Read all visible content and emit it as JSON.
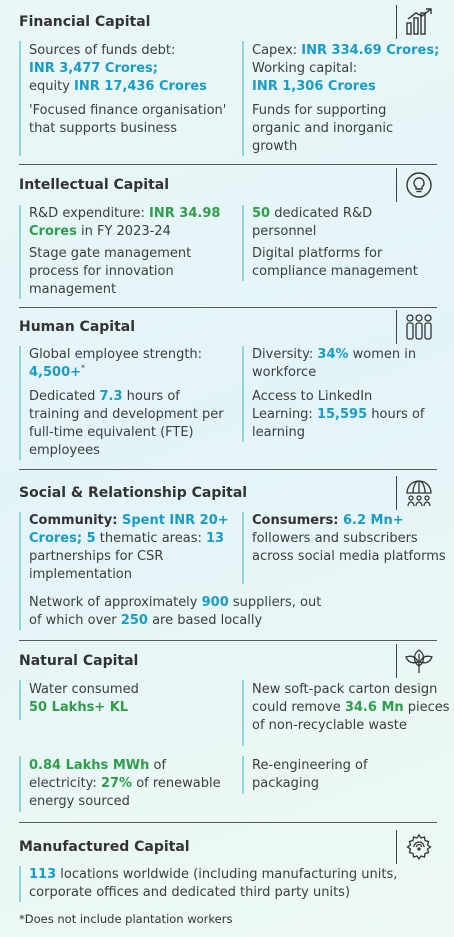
{
  "sections": [
    {
      "title": "Financial Capital",
      "icon": "bar-chart-growth-icon",
      "left": [
        {
          "parts": [
            {
              "t": "Sources of funds debt:",
              "s": ""
            },
            {
              "t": "INR 3,477 Crores;",
              "s": "c"
            },
            {
              "t": "equity ",
              "s": ""
            },
            {
              "t": "INR  17,436 Crores",
              "s": "c"
            }
          ]
        },
        {
          "parts": [
            {
              "t": "'Focused finance organisation' that supports business",
              "s": ""
            }
          ]
        }
      ],
      "right": [
        {
          "parts": [
            {
              "t": "Capex: ",
              "s": ""
            },
            {
              "t": "INR 334.69 Crores;",
              "s": "c"
            },
            {
              "t": "Working capital:",
              "s": ""
            },
            {
              "t": "INR 1,306 Crores",
              "s": "c"
            }
          ]
        },
        {
          "parts": [
            {
              "t": "Funds for supporting organic and inorganic growth",
              "s": ""
            }
          ]
        }
      ]
    },
    {
      "title": "Intellectual Capital",
      "icon": "lightbulb-icon",
      "left": [
        {
          "parts": [
            {
              "t": "R&D expenditure: ",
              "s": ""
            },
            {
              "t": "INR 34.98 Crores",
              "s": "g"
            },
            {
              "t": " in FY 2023-24",
              "s": ""
            }
          ]
        },
        {
          "parts": [
            {
              "t": "Stage gate management process for innovation management",
              "s": ""
            }
          ]
        }
      ],
      "right": [
        {
          "parts": [
            {
              "t": "50",
              "s": "g"
            },
            {
              "t": " dedicated R&D personnel",
              "s": ""
            }
          ]
        },
        {
          "parts": [
            {
              "t": "Digital platforms for compliance management",
              "s": ""
            }
          ]
        }
      ]
    },
    {
      "title": "Human Capital",
      "icon": "people-icon",
      "left": [
        {
          "parts": [
            {
              "t": "Global employee strength:",
              "s": ""
            },
            {
              "t": "4,500+",
              "s": "c"
            },
            {
              "t": "*",
              "s": "sup"
            }
          ]
        },
        {
          "parts": [
            {
              "t": "Dedicated ",
              "s": ""
            },
            {
              "t": "7.3",
              "s": "c"
            },
            {
              "t": " hours of training and development per full-time equivalent (FTE) employees",
              "s": ""
            }
          ]
        }
      ],
      "right": [
        {
          "parts": [
            {
              "t": "Diversity: ",
              "s": ""
            },
            {
              "t": "34%",
              "s": "c"
            },
            {
              "t": " women in workforce",
              "s": ""
            }
          ]
        },
        {
          "parts": [
            {
              "t": "Access to LinkedIn Learning: ",
              "s": ""
            },
            {
              "t": "15,595",
              "s": "c"
            },
            {
              "t": " hours of learning",
              "s": ""
            }
          ]
        }
      ]
    },
    {
      "title": "Social & Relationship Capital",
      "icon": "community-umbrella-icon",
      "left": [
        {
          "parts": [
            {
              "t": "Community: ",
              "s": "b"
            },
            {
              "t": "Spent INR 20+ Crores; 5",
              "s": "c"
            },
            {
              "t": " thematic areas: ",
              "s": ""
            },
            {
              "t": "13",
              "s": "c"
            },
            {
              "t": " partnerships for CSR implementation",
              "s": ""
            }
          ]
        }
      ],
      "right": [
        {
          "parts": [
            {
              "t": "Consumers: ",
              "s": "b"
            },
            {
              "t": "6.2 Mn+",
              "s": "c"
            },
            {
              "t": " followers and subscribers across social media platforms",
              "s": ""
            }
          ]
        }
      ],
      "full": {
        "parts": [
          {
            "t": "Network of approximately ",
            "s": ""
          },
          {
            "t": "900",
            "s": "c"
          },
          {
            "t": " suppliers, out of which over ",
            "s": ""
          },
          {
            "t": "250",
            "s": "c"
          },
          {
            "t": " are based locally",
            "s": ""
          }
        ]
      }
    },
    {
      "title": "Natural Capital",
      "icon": "leaf-icon",
      "left": [
        {
          "parts": [
            {
              "t": "Water consumed",
              "s": ""
            },
            {
              "t": "50 Lakhs+ KL",
              "s": "g"
            }
          ]
        },
        {
          "parts": [
            {
              "t": "0.84 Lakhs MWh",
              "s": "g"
            },
            {
              "t": " of electricity: ",
              "s": ""
            },
            {
              "t": "27%",
              "s": "g"
            },
            {
              "t": " of renewable energy sourced",
              "s": ""
            }
          ]
        }
      ],
      "right": [
        {
          "parts": [
            {
              "t": "New soft-pack carton design could remove ",
              "s": ""
            },
            {
              "t": "34.6 Mn",
              "s": "g"
            },
            {
              "t": " pieces of non-recyclable waste",
              "s": ""
            }
          ]
        },
        {
          "parts": [
            {
              "t": "Re-engineering of packaging",
              "s": ""
            }
          ]
        }
      ]
    },
    {
      "title": "Manufactured Capital",
      "icon": "gear-icon",
      "full": {
        "parts": [
          {
            "t": "113",
            "s": "c"
          },
          {
            "t": " locations worldwide (including manufacturing units, corporate offices and dedicated third party units)",
            "s": ""
          }
        ]
      }
    }
  ],
  "footnote": "*Does not include plantation workers",
  "colors": {
    "accent_blue": "#1a9cc6",
    "accent_green": "#2f9e4b",
    "bar": "#8fd7d4"
  }
}
